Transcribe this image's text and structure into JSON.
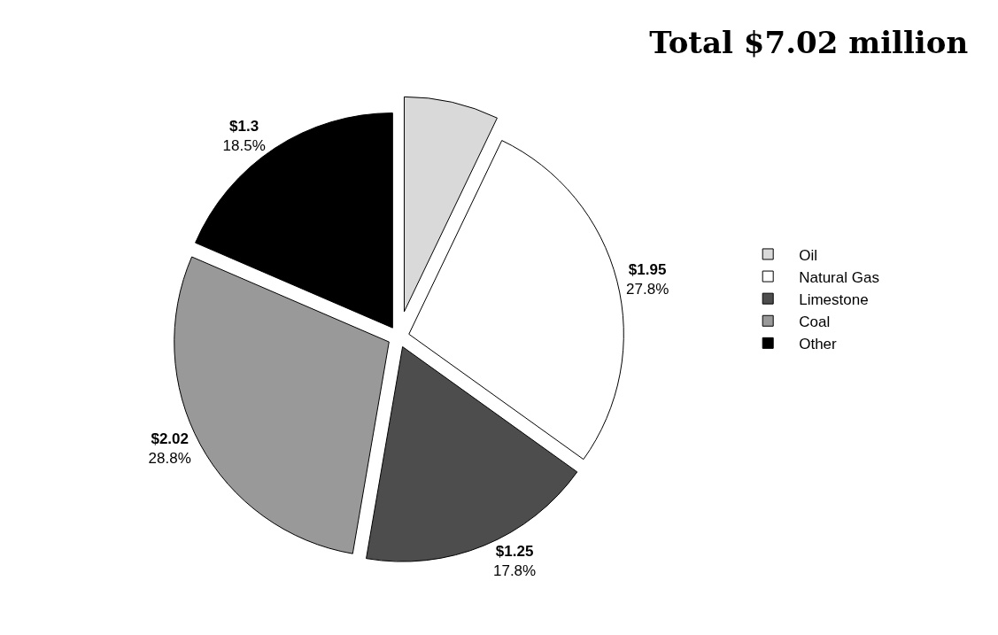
{
  "chart_data": {
    "type": "pie",
    "title": "Total $7.02 million",
    "categories": [
      "Oil",
      "Natural Gas",
      "Limestone",
      "Coal",
      "Other"
    ],
    "values": [
      0.5,
      1.95,
      1.25,
      2.02,
      1.3
    ],
    "colors": [
      "#d9d9d9",
      "#ffffff",
      "#4d4d4d",
      "#999999",
      "#000000"
    ],
    "value_labels": [
      null,
      "$1.95\n27.8%",
      "$1.25\n17.8%",
      "$2.02\n28.8%",
      "$1.3\n18.5%"
    ],
    "legend": "right"
  }
}
